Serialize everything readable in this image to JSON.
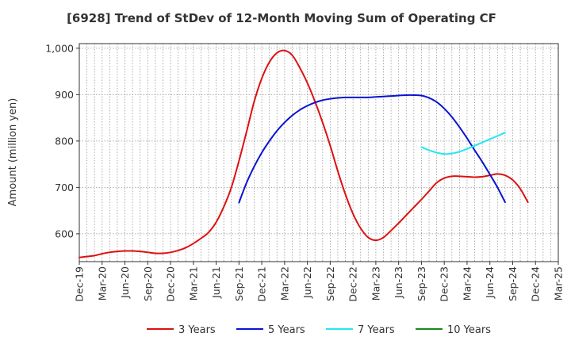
{
  "chart_data": {
    "type": "line",
    "title": "[6928]  Trend of StDev of 12-Month Moving Sum of Operating CF",
    "xlabel": "",
    "ylabel": "Amount (million yen)",
    "ylim": [
      540,
      1010
    ],
    "yticks": [
      600,
      700,
      800,
      900,
      1000
    ],
    "ytick_labels": [
      "600",
      "700",
      "800",
      "900",
      "1,000"
    ],
    "x_start": "Dec-19",
    "x_end": "Mar-25",
    "xtick_labels": [
      "Dec-19",
      "Mar-20",
      "Jun-20",
      "Sep-20",
      "Dec-20",
      "Mar-21",
      "Jun-21",
      "Sep-21",
      "Dec-21",
      "Mar-22",
      "Jun-22",
      "Sep-22",
      "Dec-22",
      "Mar-23",
      "Jun-23",
      "Sep-23",
      "Dec-23",
      "Mar-24",
      "Jun-24",
      "Sep-24",
      "Dec-24",
      "Mar-25"
    ],
    "grid": true,
    "legend_position": "bottom",
    "series": [
      {
        "name": "3 Years",
        "color": "#dd1111",
        "points": [
          [
            "Dec-19",
            549
          ],
          [
            "Jan-20",
            551
          ],
          [
            "Feb-20",
            553
          ],
          [
            "Mar-20",
            557
          ],
          [
            "Apr-20",
            560
          ],
          [
            "May-20",
            562
          ],
          [
            "Jun-20",
            563
          ],
          [
            "Jul-20",
            563
          ],
          [
            "Aug-20",
            562
          ],
          [
            "Sep-20",
            560
          ],
          [
            "Oct-20",
            558
          ],
          [
            "Nov-20",
            558
          ],
          [
            "Dec-20",
            560
          ],
          [
            "Jan-21",
            564
          ],
          [
            "Feb-21",
            570
          ],
          [
            "Mar-21",
            579
          ],
          [
            "Apr-21",
            590
          ],
          [
            "May-21",
            603
          ],
          [
            "Jun-21",
            625
          ],
          [
            "Jul-21",
            658
          ],
          [
            "Aug-21",
            700
          ],
          [
            "Sep-21",
            757
          ],
          [
            "Oct-21",
            820
          ],
          [
            "Nov-21",
            885
          ],
          [
            "Dec-21",
            935
          ],
          [
            "Jan-22",
            970
          ],
          [
            "Feb-22",
            990
          ],
          [
            "Mar-22",
            995
          ],
          [
            "Apr-22",
            985
          ],
          [
            "May-22",
            958
          ],
          [
            "Jun-22",
            925
          ],
          [
            "Jul-22",
            885
          ],
          [
            "Aug-22",
            840
          ],
          [
            "Sep-22",
            790
          ],
          [
            "Oct-22",
            735
          ],
          [
            "Nov-22",
            685
          ],
          [
            "Dec-22",
            643
          ],
          [
            "Jan-23",
            612
          ],
          [
            "Feb-23",
            592
          ],
          [
            "Mar-23",
            586
          ],
          [
            "Apr-23",
            592
          ],
          [
            "May-23",
            607
          ],
          [
            "Jun-23",
            623
          ],
          [
            "Jul-23",
            640
          ],
          [
            "Aug-23",
            657
          ],
          [
            "Sep-23",
            674
          ],
          [
            "Oct-23",
            692
          ],
          [
            "Nov-23",
            710
          ],
          [
            "Dec-23",
            720
          ],
          [
            "Jan-24",
            724
          ],
          [
            "Feb-24",
            724
          ],
          [
            "Mar-24",
            723
          ],
          [
            "Apr-24",
            722
          ],
          [
            "May-24",
            723
          ],
          [
            "Jun-24",
            726
          ],
          [
            "Jul-24",
            729
          ],
          [
            "Aug-24",
            726
          ],
          [
            "Sep-24",
            716
          ],
          [
            "Oct-24",
            697
          ],
          [
            "Nov-24",
            668
          ]
        ]
      },
      {
        "name": "5 Years",
        "color": "#0a14d0",
        "points": [
          [
            "Sep-21",
            667
          ],
          [
            "Oct-21",
            710
          ],
          [
            "Nov-21",
            745
          ],
          [
            "Dec-21",
            775
          ],
          [
            "Jan-22",
            800
          ],
          [
            "Feb-22",
            822
          ],
          [
            "Mar-22",
            840
          ],
          [
            "Apr-22",
            855
          ],
          [
            "May-22",
            867
          ],
          [
            "Jun-22",
            876
          ],
          [
            "Jul-22",
            883
          ],
          [
            "Aug-22",
            888
          ],
          [
            "Sep-22",
            891
          ],
          [
            "Oct-22",
            893
          ],
          [
            "Nov-22",
            894
          ],
          [
            "Dec-22",
            894
          ],
          [
            "Jan-23",
            894
          ],
          [
            "Feb-23",
            894
          ],
          [
            "Mar-23",
            895
          ],
          [
            "Apr-23",
            896
          ],
          [
            "May-23",
            897
          ],
          [
            "Jun-23",
            898
          ],
          [
            "Jul-23",
            899
          ],
          [
            "Aug-23",
            899
          ],
          [
            "Sep-23",
            898
          ],
          [
            "Oct-23",
            893
          ],
          [
            "Nov-23",
            884
          ],
          [
            "Dec-23",
            870
          ],
          [
            "Jan-24",
            852
          ],
          [
            "Feb-24",
            830
          ],
          [
            "Mar-24",
            806
          ],
          [
            "Apr-24",
            780
          ],
          [
            "May-24",
            755
          ],
          [
            "Jun-24",
            728
          ],
          [
            "Jul-24",
            700
          ],
          [
            "Aug-24",
            668
          ]
        ]
      },
      {
        "name": "7 Years",
        "color": "#22e8ee",
        "points": [
          [
            "Sep-23",
            787
          ],
          [
            "Oct-23",
            780
          ],
          [
            "Nov-23",
            775
          ],
          [
            "Dec-23",
            772
          ],
          [
            "Jan-24",
            773
          ],
          [
            "Feb-24",
            777
          ],
          [
            "Mar-24",
            783
          ],
          [
            "Apr-24",
            790
          ],
          [
            "May-24",
            797
          ],
          [
            "Jun-24",
            804
          ],
          [
            "Jul-24",
            811
          ],
          [
            "Aug-24",
            818
          ]
        ]
      },
      {
        "name": "10 Years",
        "color": "#1a8a1a",
        "points": []
      }
    ]
  }
}
